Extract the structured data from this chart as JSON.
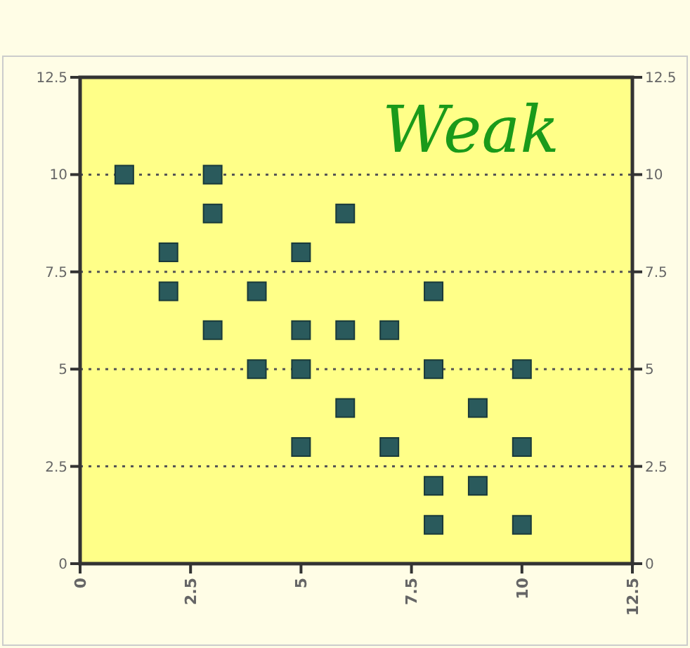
{
  "chart_data": {
    "type": "scatter",
    "annotations": [
      "Weak"
    ],
    "x": [
      1,
      3,
      3,
      2,
      2,
      3,
      4,
      4,
      5,
      5,
      5,
      5,
      6,
      6,
      6,
      7,
      7,
      8,
      8,
      8,
      8,
      9,
      9,
      10,
      10,
      10
    ],
    "values": [
      10,
      10,
      9,
      8,
      7,
      6,
      7,
      5,
      8,
      6,
      5,
      3,
      9,
      6,
      4,
      6,
      3,
      7,
      5,
      2,
      1,
      4,
      2,
      5,
      3,
      1
    ],
    "color": "#2a5a5c",
    "marker": "square",
    "grid": "y",
    "xlim": [
      0,
      12.5
    ],
    "xticks": [
      0,
      2.5,
      5,
      7.5,
      10,
      12.5
    ],
    "ylim": [
      0,
      12.5
    ],
    "yticks": [
      0,
      2.5,
      5,
      7.5,
      10,
      12.5
    ],
    "y2lim": [
      0,
      12.5
    ],
    "y2ticks": [
      0,
      2.5,
      5,
      7.5,
      10,
      12.5
    ]
  }
}
